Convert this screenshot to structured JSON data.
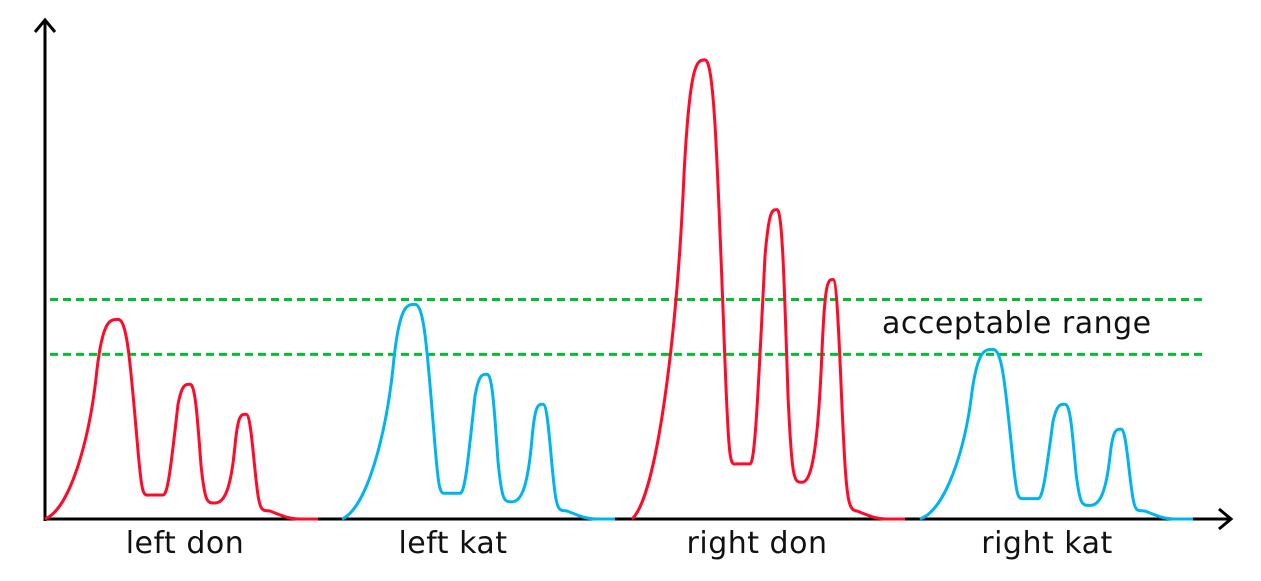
{
  "colors": {
    "don": "#ff0a28",
    "kat": "#00b4f0",
    "range": "#00c030",
    "axis": "#000000"
  },
  "range_label": "acceptable range",
  "range_bounds": [
    0.33,
    0.44
  ],
  "groups": [
    {
      "label": "left don",
      "type": "don",
      "peaks": [
        0.4,
        0.27,
        0.21
      ]
    },
    {
      "label": "left kat",
      "type": "kat",
      "peaks": [
        0.43,
        0.29,
        0.23
      ]
    },
    {
      "label": "right don",
      "type": "don",
      "peaks": [
        0.92,
        0.62,
        0.48
      ]
    },
    {
      "label": "right kat",
      "type": "kat",
      "peaks": [
        0.34,
        0.23,
        0.18
      ]
    }
  ]
}
